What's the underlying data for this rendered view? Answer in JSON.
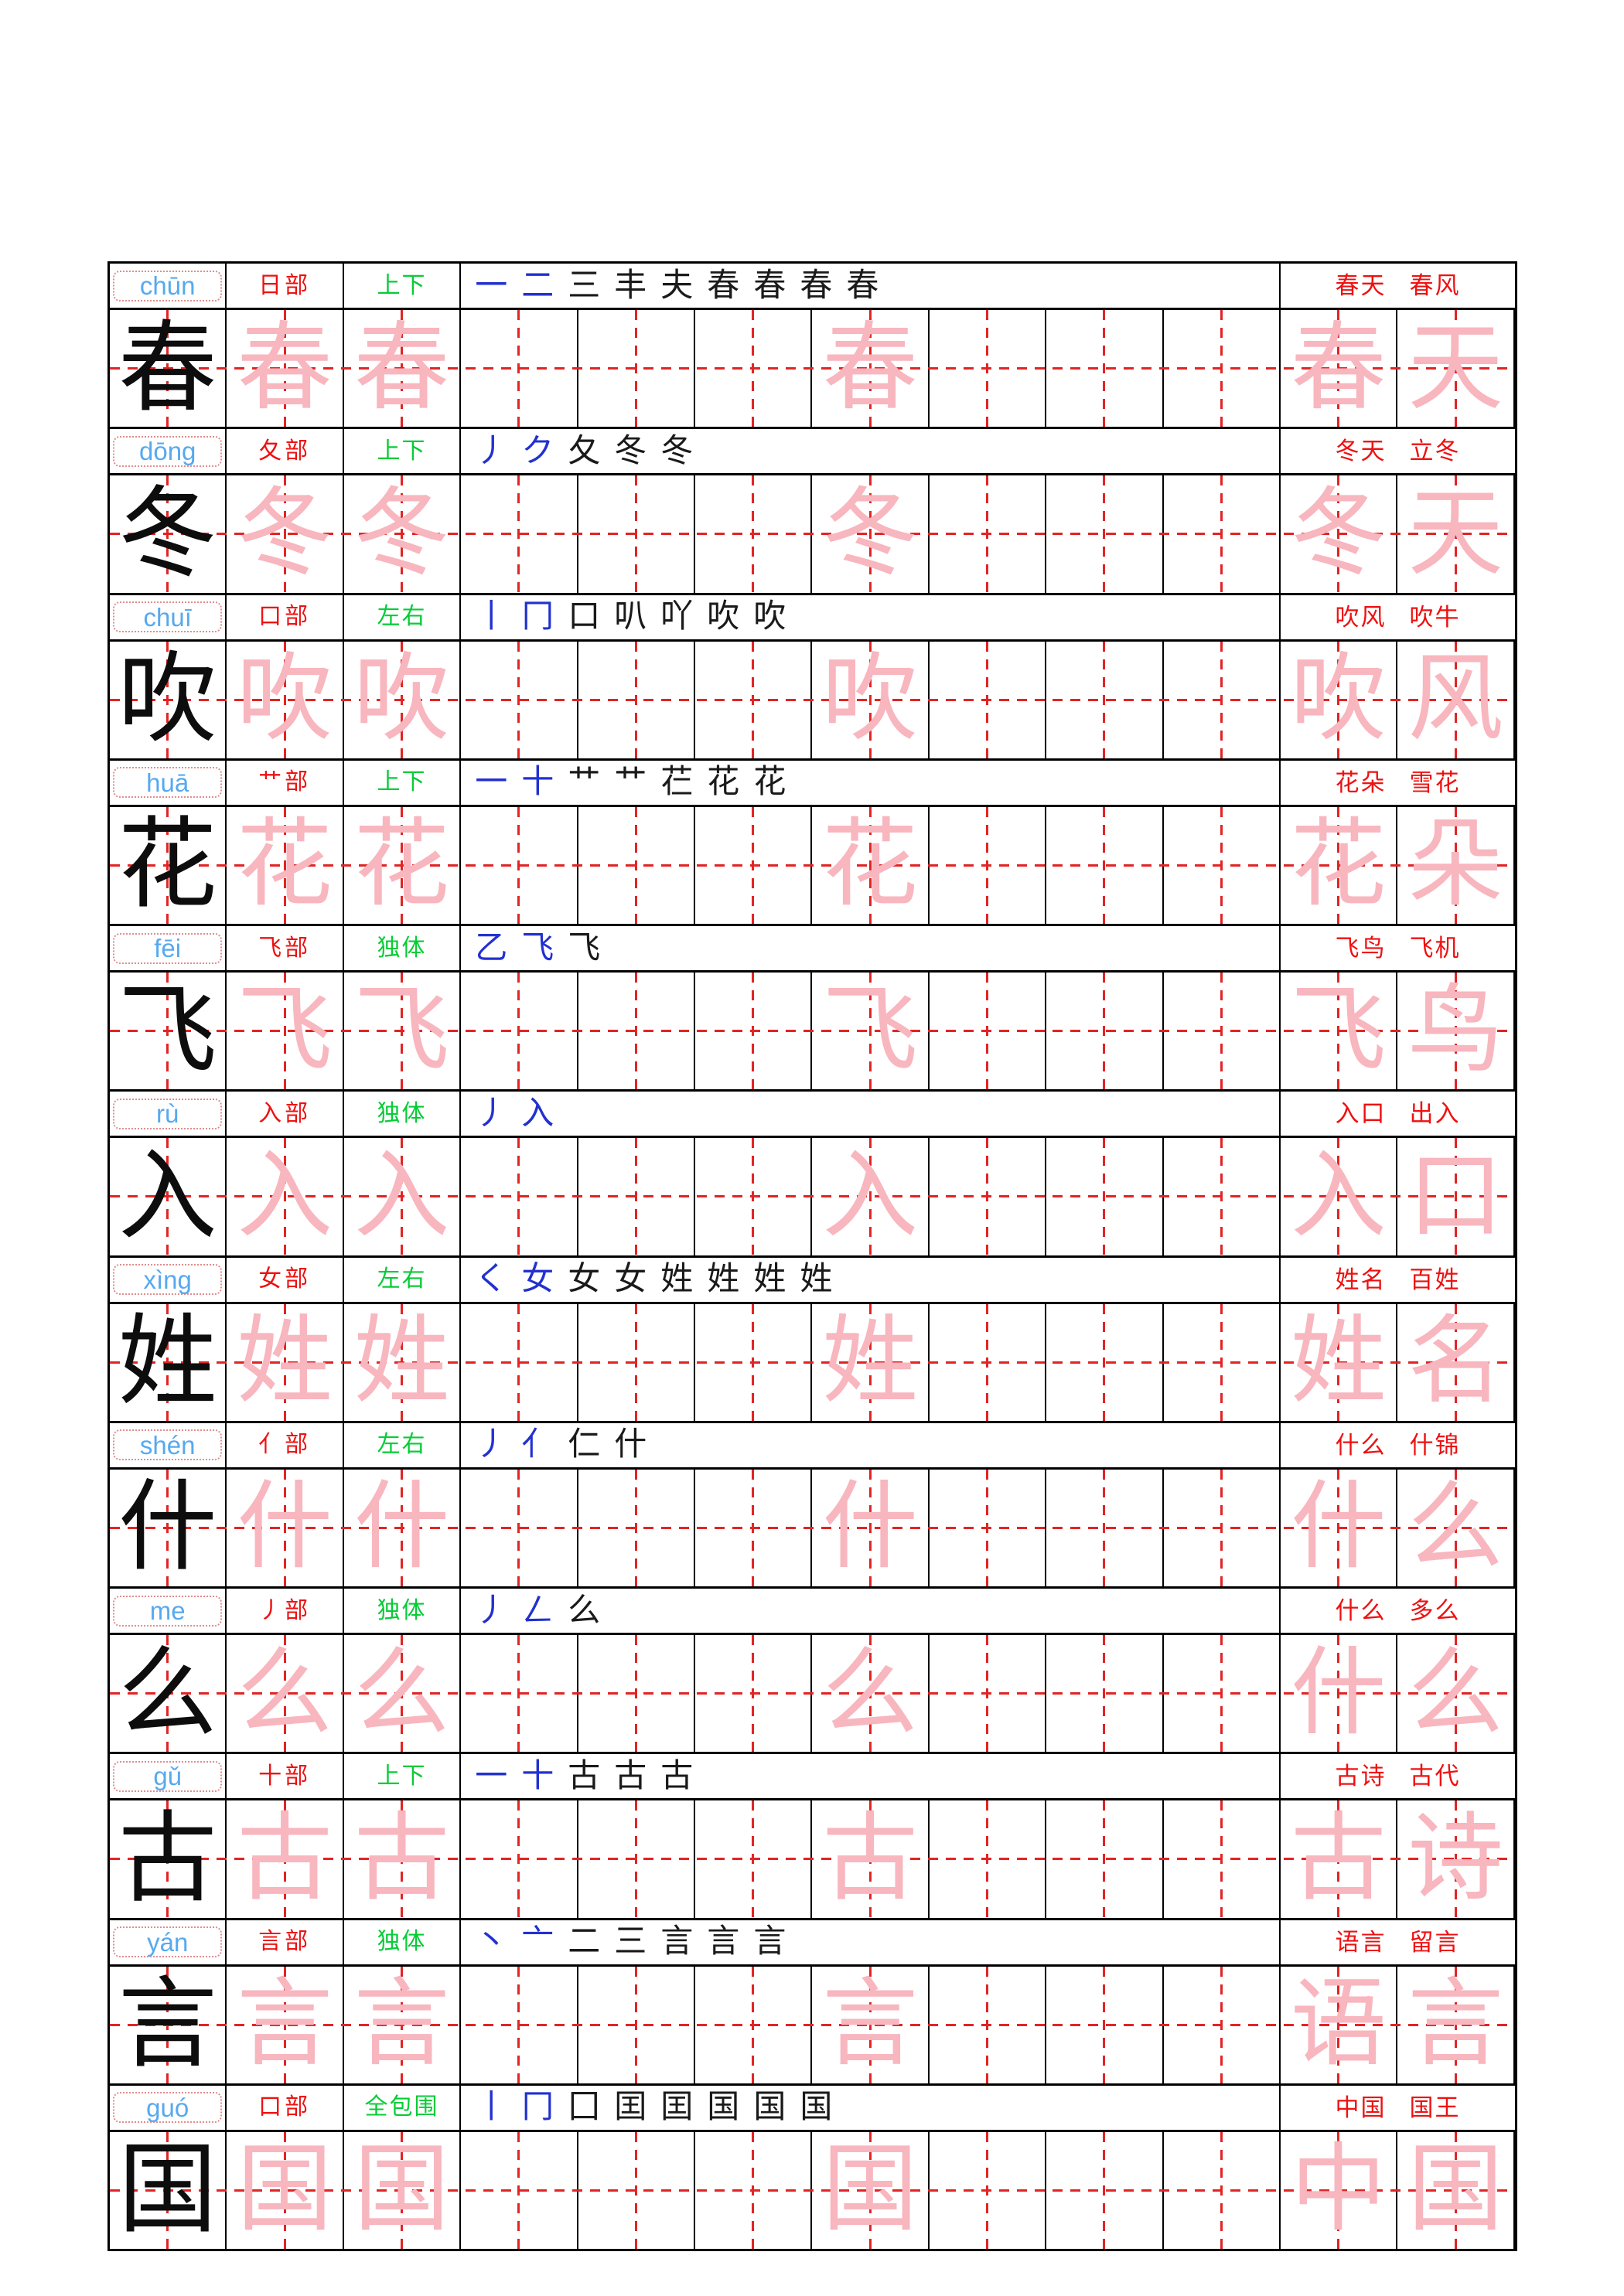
{
  "sheet": {
    "type": "chinese-character-practice-worksheet",
    "background": "#ffffff",
    "columns_per_practice_row": 12
  },
  "colors": {
    "pinyin_blue": "#57a9ef",
    "radical_red": "#ee1111",
    "structure_green": "#07cc36",
    "word_red": "#ee1111",
    "stroke_black": "#1a1a1a",
    "stroke_blue": "#2231cf",
    "trace_pink": "#f8b6bf",
    "main_char_black": "#0d0d0d",
    "grid_dash_red": "#e22424",
    "pinyin_guide_dotted": "#e08d8d",
    "border_black": "#000000"
  },
  "rows": [
    {
      "char": "春",
      "pinyin": "chūn",
      "radical": "日部",
      "structure": "上下",
      "stroke_steps": [
        "一",
        "二",
        "三",
        "丰",
        "夫",
        "春",
        "春",
        "春",
        "春"
      ],
      "words": [
        "春天",
        "春风"
      ],
      "cells": [
        "春",
        "春",
        "春",
        "",
        "",
        "",
        "春",
        "",
        "",
        "",
        "春",
        "天"
      ]
    },
    {
      "char": "冬",
      "pinyin": "dōng",
      "radical": "夂部",
      "structure": "上下",
      "stroke_steps": [
        "丿",
        "ク",
        "夂",
        "冬",
        "冬"
      ],
      "words": [
        "冬天",
        "立冬"
      ],
      "cells": [
        "冬",
        "冬",
        "冬",
        "",
        "",
        "",
        "冬",
        "",
        "",
        "",
        "冬",
        "天"
      ]
    },
    {
      "char": "吹",
      "pinyin": "chuī",
      "radical": "口部",
      "structure": "左右",
      "stroke_steps": [
        "丨",
        "冂",
        "口",
        "叭",
        "吖",
        "吹",
        "吹"
      ],
      "words": [
        "吹风",
        "吹牛"
      ],
      "cells": [
        "吹",
        "吹",
        "吹",
        "",
        "",
        "",
        "吹",
        "",
        "",
        "",
        "吹",
        "风"
      ]
    },
    {
      "char": "花",
      "pinyin": "huā",
      "radical": "艹部",
      "structure": "上下",
      "stroke_steps": [
        "一",
        "十",
        "艹",
        "艹",
        "芢",
        "花",
        "花"
      ],
      "words": [
        "花朵",
        "雪花"
      ],
      "cells": [
        "花",
        "花",
        "花",
        "",
        "",
        "",
        "花",
        "",
        "",
        "",
        "花",
        "朵"
      ]
    },
    {
      "char": "飞",
      "pinyin": "fēi",
      "radical": "飞部",
      "structure": "独体",
      "stroke_steps": [
        "乙",
        "飞",
        "飞"
      ],
      "words": [
        "飞鸟",
        "飞机"
      ],
      "cells": [
        "飞",
        "飞",
        "飞",
        "",
        "",
        "",
        "飞",
        "",
        "",
        "",
        "飞",
        "鸟"
      ]
    },
    {
      "char": "入",
      "pinyin": "rù",
      "radical": "入部",
      "structure": "独体",
      "stroke_steps": [
        "丿",
        "入"
      ],
      "words": [
        "入口",
        "出入"
      ],
      "cells": [
        "入",
        "入",
        "入",
        "",
        "",
        "",
        "入",
        "",
        "",
        "",
        "入",
        "口"
      ]
    },
    {
      "char": "姓",
      "pinyin": "xìng",
      "radical": "女部",
      "structure": "左右",
      "stroke_steps": [
        "く",
        "女",
        "女",
        "女",
        "姓",
        "姓",
        "姓",
        "姓"
      ],
      "words": [
        "姓名",
        "百姓"
      ],
      "cells": [
        "姓",
        "姓",
        "姓",
        "",
        "",
        "",
        "姓",
        "",
        "",
        "",
        "姓",
        "名"
      ]
    },
    {
      "char": "什",
      "pinyin": "shén",
      "radical": "亻部",
      "structure": "左右",
      "stroke_steps": [
        "丿",
        "亻",
        "仁",
        "什"
      ],
      "words": [
        "什么",
        "什锦"
      ],
      "cells": [
        "什",
        "什",
        "什",
        "",
        "",
        "",
        "什",
        "",
        "",
        "",
        "什",
        "么"
      ]
    },
    {
      "char": "么",
      "pinyin": "me",
      "radical": "丿部",
      "structure": "独体",
      "stroke_steps": [
        "丿",
        "ㄥ",
        "么"
      ],
      "words": [
        "什么",
        "多么"
      ],
      "cells": [
        "么",
        "么",
        "么",
        "",
        "",
        "",
        "么",
        "",
        "",
        "",
        "什",
        "么"
      ]
    },
    {
      "char": "古",
      "pinyin": "gǔ",
      "radical": "十部",
      "structure": "上下",
      "stroke_steps": [
        "一",
        "十",
        "古",
        "古",
        "古"
      ],
      "words": [
        "古诗",
        "古代"
      ],
      "cells": [
        "古",
        "古",
        "古",
        "",
        "",
        "",
        "古",
        "",
        "",
        "",
        "古",
        "诗"
      ]
    },
    {
      "char": "言",
      "pinyin": "yán",
      "radical": "言部",
      "structure": "独体",
      "stroke_steps": [
        "丶",
        "亠",
        "二",
        "三",
        "言",
        "言",
        "言"
      ],
      "words": [
        "语言",
        "留言"
      ],
      "cells": [
        "言",
        "言",
        "言",
        "",
        "",
        "",
        "言",
        "",
        "",
        "",
        "语",
        "言"
      ]
    },
    {
      "char": "国",
      "pinyin": "guó",
      "radical": "口部",
      "structure": "全包围",
      "stroke_steps": [
        "丨",
        "冂",
        "囗",
        "囯",
        "囯",
        "国",
        "国",
        "国"
      ],
      "words": [
        "中国",
        "国王"
      ],
      "cells": [
        "国",
        "国",
        "国",
        "",
        "",
        "",
        "国",
        "",
        "",
        "",
        "中",
        "国"
      ]
    }
  ]
}
